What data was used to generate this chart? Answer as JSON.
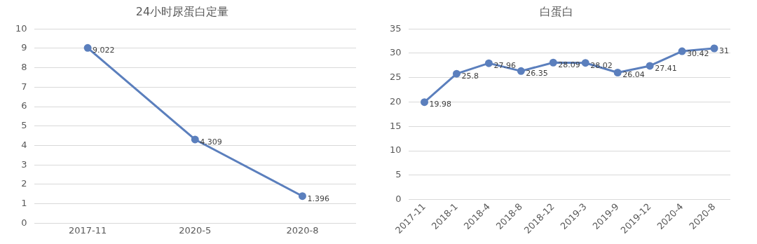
{
  "chart_data": [
    {
      "type": "line",
      "title": "24小时尿蛋白定量",
      "categories": [
        "2017-11",
        "2020-5",
        "2020-8"
      ],
      "series": [
        {
          "color": "#5b7fbd",
          "values": [
            9.022,
            4.309,
            1.396
          ]
        }
      ],
      "ylim": [
        0,
        10
      ],
      "yticks": [
        0,
        1,
        2,
        3,
        4,
        5,
        6,
        7,
        8,
        9,
        10
      ],
      "grid": "y",
      "marker": "circle",
      "line_style": "solid",
      "data_labels": true
    },
    {
      "type": "line",
      "title": "白蛋白",
      "categories": [
        "2017-11",
        "2018-1",
        "2018-4",
        "2018-8",
        "2018-12",
        "2019-3",
        "2019-9",
        "2019-12",
        "2020-4",
        "2020-8"
      ],
      "series": [
        {
          "color": "#5b7fbd",
          "values": [
            19.98,
            25.8,
            27.96,
            26.35,
            28.09,
            28.02,
            26.04,
            27.41,
            30.42,
            31
          ]
        }
      ],
      "ylim": [
        0,
        35
      ],
      "yticks": [
        0,
        5,
        10,
        15,
        20,
        25,
        30,
        35
      ],
      "grid": "y",
      "marker": "circle",
      "line_style": "solid",
      "data_labels": true
    }
  ]
}
